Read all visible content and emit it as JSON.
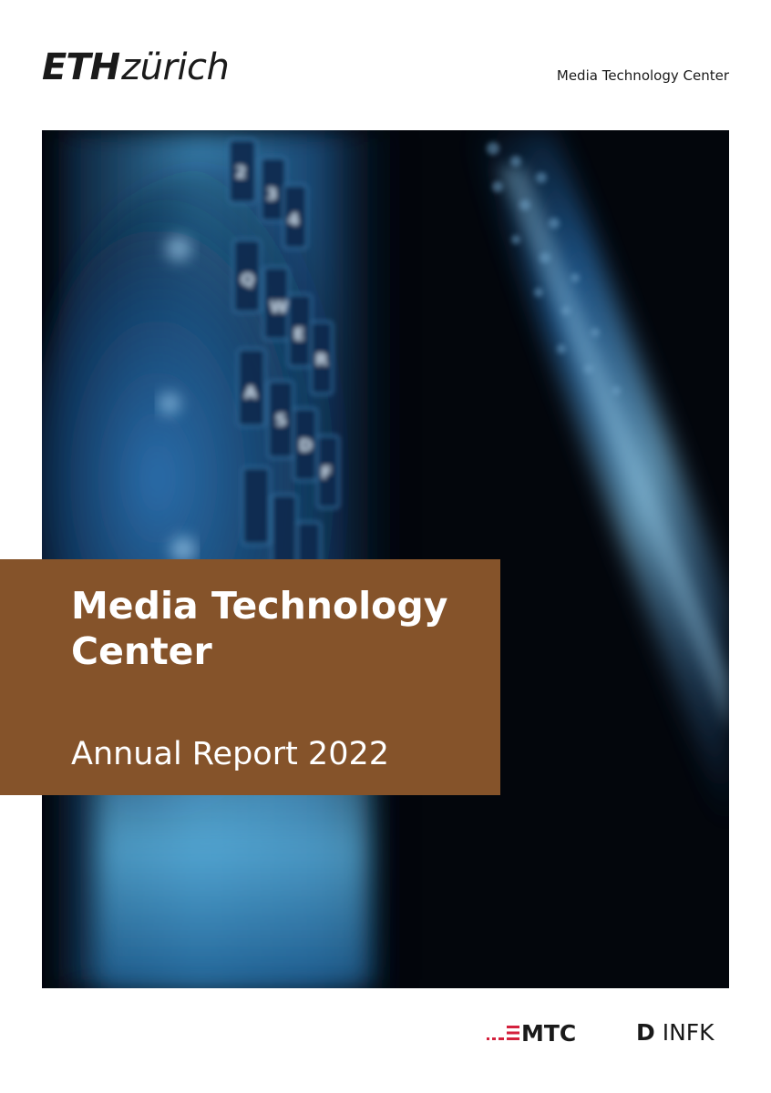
{
  "header": {
    "logo_eth": "ETH",
    "logo_zurich": "zürich",
    "department": "Media Technology Center"
  },
  "cover": {
    "title": "Media Technology Center",
    "subtitle": "Annual Report 2022",
    "accent_color": "#85532a",
    "photo_description_icon": "keyboard-photo"
  },
  "footer": {
    "mtc_logo": "MTC",
    "mtc_accent_color": "#d4213d",
    "dinfk_d": "D",
    "dinfk_text": "INFK"
  }
}
